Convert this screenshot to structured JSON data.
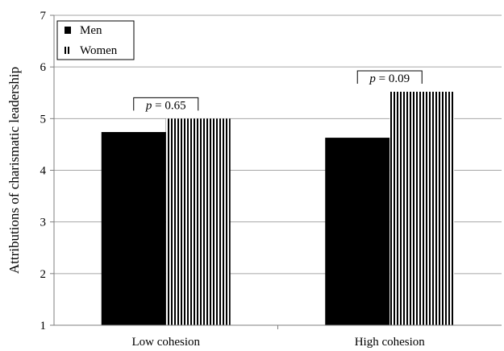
{
  "chart_data": {
    "type": "bar",
    "ylabel": "Attributions of charismatic leadership",
    "xlabel": "",
    "ylim": [
      1,
      7
    ],
    "yticks": [
      1,
      2,
      3,
      4,
      5,
      6,
      7
    ],
    "grid": true,
    "categories": [
      "Low cohesion",
      "High cohesion"
    ],
    "series": [
      {
        "name": "Men",
        "values": [
          4.74,
          4.63
        ],
        "fill": "solid-black"
      },
      {
        "name": "Women",
        "values": [
          5.0,
          5.52
        ],
        "fill": "vertical-stripes"
      }
    ],
    "annotations": [
      {
        "category": "Low cohesion",
        "p_prefix": "p",
        "p_rest": " = 0.65"
      },
      {
        "category": "High cohesion",
        "p_prefix": "p",
        "p_rest": " = 0.09"
      }
    ],
    "legend": {
      "placement": "top-left"
    }
  },
  "colors": {
    "bar_black": "#000000",
    "grid": "#a6a6a6",
    "axis": "#7f7f7f"
  }
}
